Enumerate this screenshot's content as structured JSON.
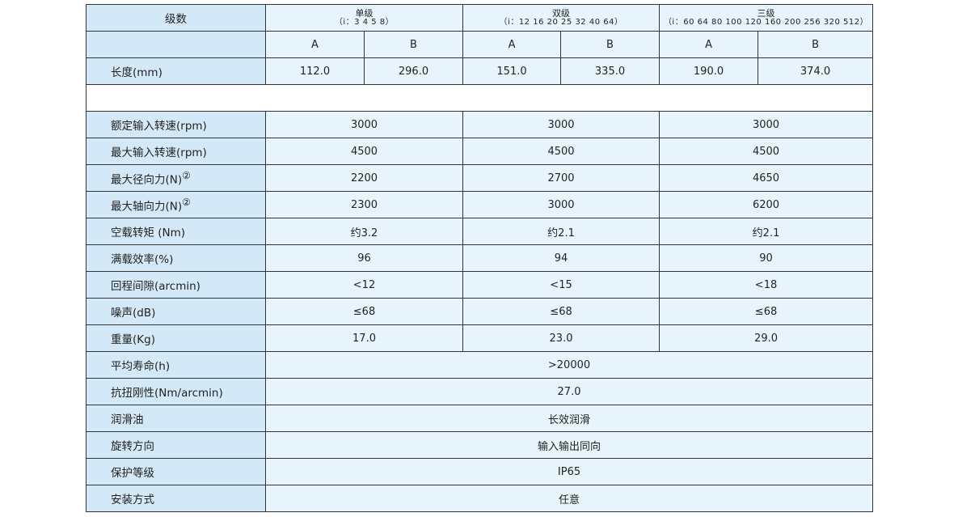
{
  "header": {
    "label": "级数",
    "groups": [
      {
        "name": "单级",
        "ratios": "（i：3 4 5 8）"
      },
      {
        "name": "双级",
        "ratios": "（i：12 16 20 25 32 40 64）"
      },
      {
        "name": "三级",
        "ratios": "（i：60 64 80 100 120 160 200 256 320 512）"
      }
    ],
    "sub_columns": [
      "A",
      "B",
      "A",
      "B",
      "A",
      "B"
    ]
  },
  "length_row": {
    "label": "长度(mm)",
    "values": [
      "112.0",
      "296.0",
      "151.0",
      "335.0",
      "190.0",
      "374.0"
    ]
  },
  "rows3": [
    {
      "label": "额定输入转速(rpm)",
      "values": [
        "3000",
        "3000",
        "3000"
      ]
    },
    {
      "label": "最大输入转速(rpm)",
      "values": [
        "4500",
        "4500",
        "4500"
      ]
    },
    {
      "label": "最大径向力(N)",
      "note": "②",
      "values": [
        "2200",
        "2700",
        "4650"
      ]
    },
    {
      "label": "最大轴向力(N)",
      "note": "②",
      "values": [
        "2300",
        "3000",
        "6200"
      ]
    },
    {
      "label": "空载转矩 (Nm)",
      "values": [
        "约3.2",
        "约2.1",
        "约2.1"
      ]
    },
    {
      "label": "满载效率(%)",
      "values": [
        "96",
        "94",
        "90"
      ]
    },
    {
      "label": "回程间隙(arcmin)",
      "values": [
        "<12",
        "<15",
        "<18"
      ]
    },
    {
      "label": "噪声(dB)",
      "values": [
        "≤68",
        "≤68",
        "≤68"
      ]
    },
    {
      "label": "重量(Kg)",
      "values": [
        "17.0",
        "23.0",
        "29.0"
      ]
    }
  ],
  "rows1": [
    {
      "label": "平均寿命(h)",
      "value": ">20000"
    },
    {
      "label": "抗扭刚性(Nm/arcmin)",
      "value": "27.0"
    },
    {
      "label": "润滑油",
      "value": "长效润滑"
    },
    {
      "label": "旋转方向",
      "value": "输入输出同向"
    },
    {
      "label": "保护等级",
      "value": "IP65"
    },
    {
      "label": "安装方式",
      "value": "任意"
    }
  ]
}
